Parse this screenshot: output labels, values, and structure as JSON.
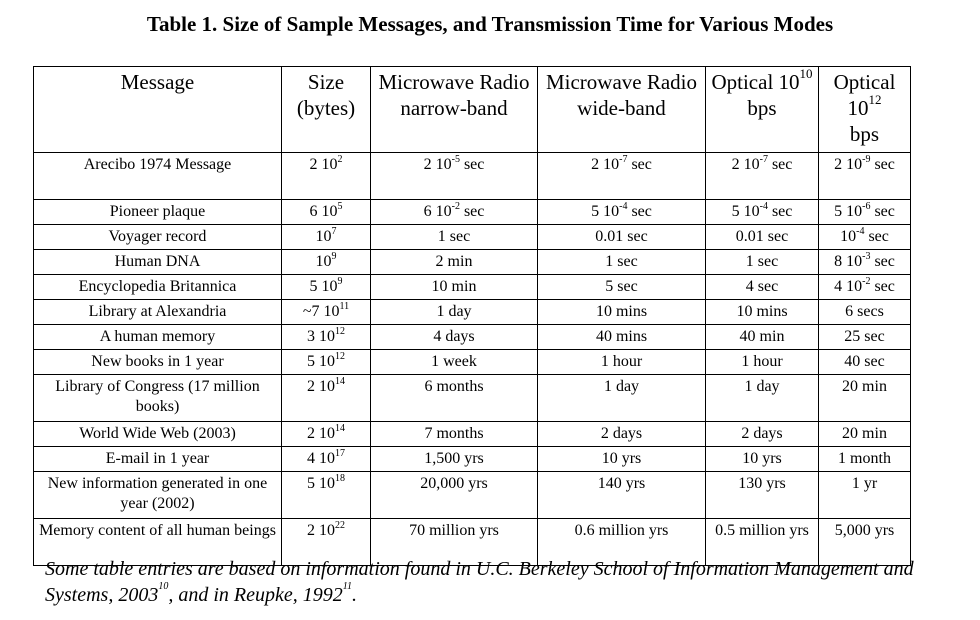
{
  "title": "Table 1.  Size of Sample Messages, and Transmission Time for Various Modes",
  "headers": {
    "message": "Message",
    "size": "Size (bytes)",
    "mw_narrow": "Microwave Radio narrow-band",
    "mw_wide": "Microwave Radio wide-band",
    "opt10_pre": "Optical 10",
    "opt10_sup": "10",
    "opt10_post": " bps",
    "opt12_pre": "Optical 10",
    "opt12_sup": "12",
    "opt12_post": "bps"
  },
  "rows": [
    {
      "message": "Arecibo 1974 Message",
      "size": [
        "2 10",
        "2",
        ""
      ],
      "narrow": [
        "2 10",
        "-5",
        " sec"
      ],
      "wide": [
        "2 10",
        "-7",
        " sec"
      ],
      "opt10": [
        "2 10",
        "-7",
        " sec"
      ],
      "opt12": [
        "2 10",
        "-9",
        " sec"
      ]
    },
    {
      "message": "Pioneer plaque",
      "size": [
        "6 10",
        "5",
        ""
      ],
      "narrow": [
        "6 10",
        "-2",
        " sec"
      ],
      "wide": [
        "5 10",
        "-4",
        " sec"
      ],
      "opt10": [
        "5 10",
        "-4",
        " sec"
      ],
      "opt12": [
        "5 10",
        "-6",
        " sec"
      ]
    },
    {
      "message": "Voyager record",
      "size": [
        "10",
        "7",
        ""
      ],
      "narrow": [
        "1 sec",
        "",
        ""
      ],
      "wide": [
        "0.01 sec",
        "",
        ""
      ],
      "opt10": [
        "0.01 sec",
        "",
        ""
      ],
      "opt12": [
        "10",
        "-4",
        " sec"
      ]
    },
    {
      "message": "Human DNA",
      "size": [
        "10",
        "9",
        ""
      ],
      "narrow": [
        "2 min",
        "",
        ""
      ],
      "wide": [
        "1 sec",
        "",
        ""
      ],
      "opt10": [
        "1 sec",
        "",
        ""
      ],
      "opt12": [
        "8 10",
        "-3",
        " sec"
      ]
    },
    {
      "message": "Encyclopedia Britannica",
      "size": [
        "5 10",
        "9",
        ""
      ],
      "narrow": [
        "10 min",
        "",
        ""
      ],
      "wide": [
        "5 sec",
        "",
        ""
      ],
      "opt10": [
        "4 sec",
        "",
        ""
      ],
      "opt12": [
        "4 10",
        "-2",
        " sec"
      ]
    },
    {
      "message": "Library at Alexandria",
      "size": [
        "~7 10",
        "11",
        ""
      ],
      "narrow": [
        "1 day",
        "",
        ""
      ],
      "wide": [
        "10 mins",
        "",
        ""
      ],
      "opt10": [
        "10 mins",
        "",
        ""
      ],
      "opt12": [
        "6 secs",
        "",
        ""
      ]
    },
    {
      "message": "A  human memory",
      "size": [
        "3 10",
        "12",
        ""
      ],
      "narrow": [
        "4 days",
        "",
        ""
      ],
      "wide": [
        "40 mins",
        "",
        ""
      ],
      "opt10": [
        "40 min",
        "",
        ""
      ],
      "opt12": [
        "25 sec",
        "",
        ""
      ]
    },
    {
      "message": "New books in 1 year",
      "size": [
        "5 10",
        "12",
        ""
      ],
      "narrow": [
        "1 week",
        "",
        ""
      ],
      "wide": [
        "1 hour",
        "",
        ""
      ],
      "opt10": [
        "1 hour",
        "",
        ""
      ],
      "opt12": [
        "40 sec",
        "",
        ""
      ]
    },
    {
      "message": "Library of Congress (17 million books)",
      "size": [
        "2 10",
        "14",
        ""
      ],
      "narrow": [
        "6 months",
        "",
        ""
      ],
      "wide": [
        "1 day",
        "",
        ""
      ],
      "opt10": [
        "1 day",
        "",
        ""
      ],
      "opt12": [
        "20 min",
        "",
        ""
      ]
    },
    {
      "message": "World Wide Web (2003)",
      "size": [
        "2 10",
        "14",
        ""
      ],
      "narrow": [
        "7 months",
        "",
        ""
      ],
      "wide": [
        "2 days",
        "",
        ""
      ],
      "opt10": [
        "2 days",
        "",
        ""
      ],
      "opt12": [
        "20 min",
        "",
        ""
      ]
    },
    {
      "message": "E-mail in 1 year",
      "size": [
        "4 10",
        "17",
        ""
      ],
      "narrow": [
        "1,500 yrs",
        "",
        ""
      ],
      "wide": [
        "10 yrs",
        "",
        ""
      ],
      "opt10": [
        "10 yrs",
        "",
        ""
      ],
      "opt12": [
        "1 month",
        "",
        ""
      ]
    },
    {
      "message": "New information generated in one year (2002)",
      "size": [
        "5 10",
        "18",
        ""
      ],
      "narrow": [
        "20,000 yrs",
        "",
        ""
      ],
      "wide": [
        "140 yrs",
        "",
        ""
      ],
      "opt10": [
        "130 yrs",
        "",
        ""
      ],
      "opt12": [
        "1 yr",
        "",
        ""
      ]
    },
    {
      "message": "Memory content of all human beings",
      "size": [
        "2 10",
        "22",
        ""
      ],
      "narrow": [
        "70 million yrs",
        "",
        ""
      ],
      "wide": [
        "0.6 million yrs",
        "",
        ""
      ],
      "opt10": [
        "0.5 million yrs",
        "",
        ""
      ],
      "opt12": [
        "5,000 yrs",
        "",
        ""
      ]
    }
  ],
  "note": {
    "text1": "Some table entries are based on information found in U.C. Berkeley School of Information Management and Systems, 2003",
    "sup1": "10",
    "text2": ", and in Reupke, 1992",
    "sup2": "11",
    "text3": "."
  }
}
